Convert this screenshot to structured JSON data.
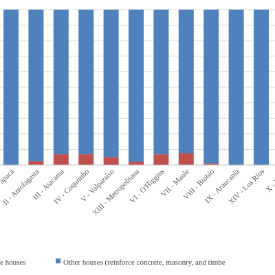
{
  "chart_data": {
    "type": "bar",
    "stacked": true,
    "normalized": true,
    "categories": [
      "I - Tarapacá",
      "II - Antofagasta",
      "III - Atacama",
      "IV - Coquimbo",
      "V - Valparaíso",
      "XIII - Metropolitana",
      "VI - O'Higgins",
      "VII - Maule",
      "VIII - Biobío",
      "IX - Araucanía",
      "XIV - Los Ríos",
      "X - Los Lagos"
    ],
    "visible_categories": [
      "apacá",
      "II - Antofagasta",
      "III - Atacama",
      "IV - Coquimbo",
      "V - Valparaíso",
      "XIII - Metropolitana",
      "VI - O'Higgins",
      "VII - Maule",
      "VIII - Biobío",
      "IX - Araucanía",
      "XIV - Los Ríos",
      "X - Los L"
    ],
    "series": [
      {
        "name": "e houses",
        "color": "#c0504d",
        "values": [
          0.0,
          2.5,
          7.0,
          7.0,
          5.0,
          2.0,
          7.0,
          7.5,
          1.0,
          0.0,
          0.0,
          0.0
        ]
      },
      {
        "name": "Other houses (reinforce concrete, masonry, and timbe",
        "color": "#4f81bd",
        "values": [
          100.0,
          97.5,
          93.0,
          93.0,
          95.0,
          98.0,
          93.0,
          92.5,
          99.0,
          100.0,
          100.0,
          100.0
        ]
      }
    ],
    "ylim": [
      0,
      100
    ],
    "grid": true,
    "legend_position": "bottom"
  }
}
